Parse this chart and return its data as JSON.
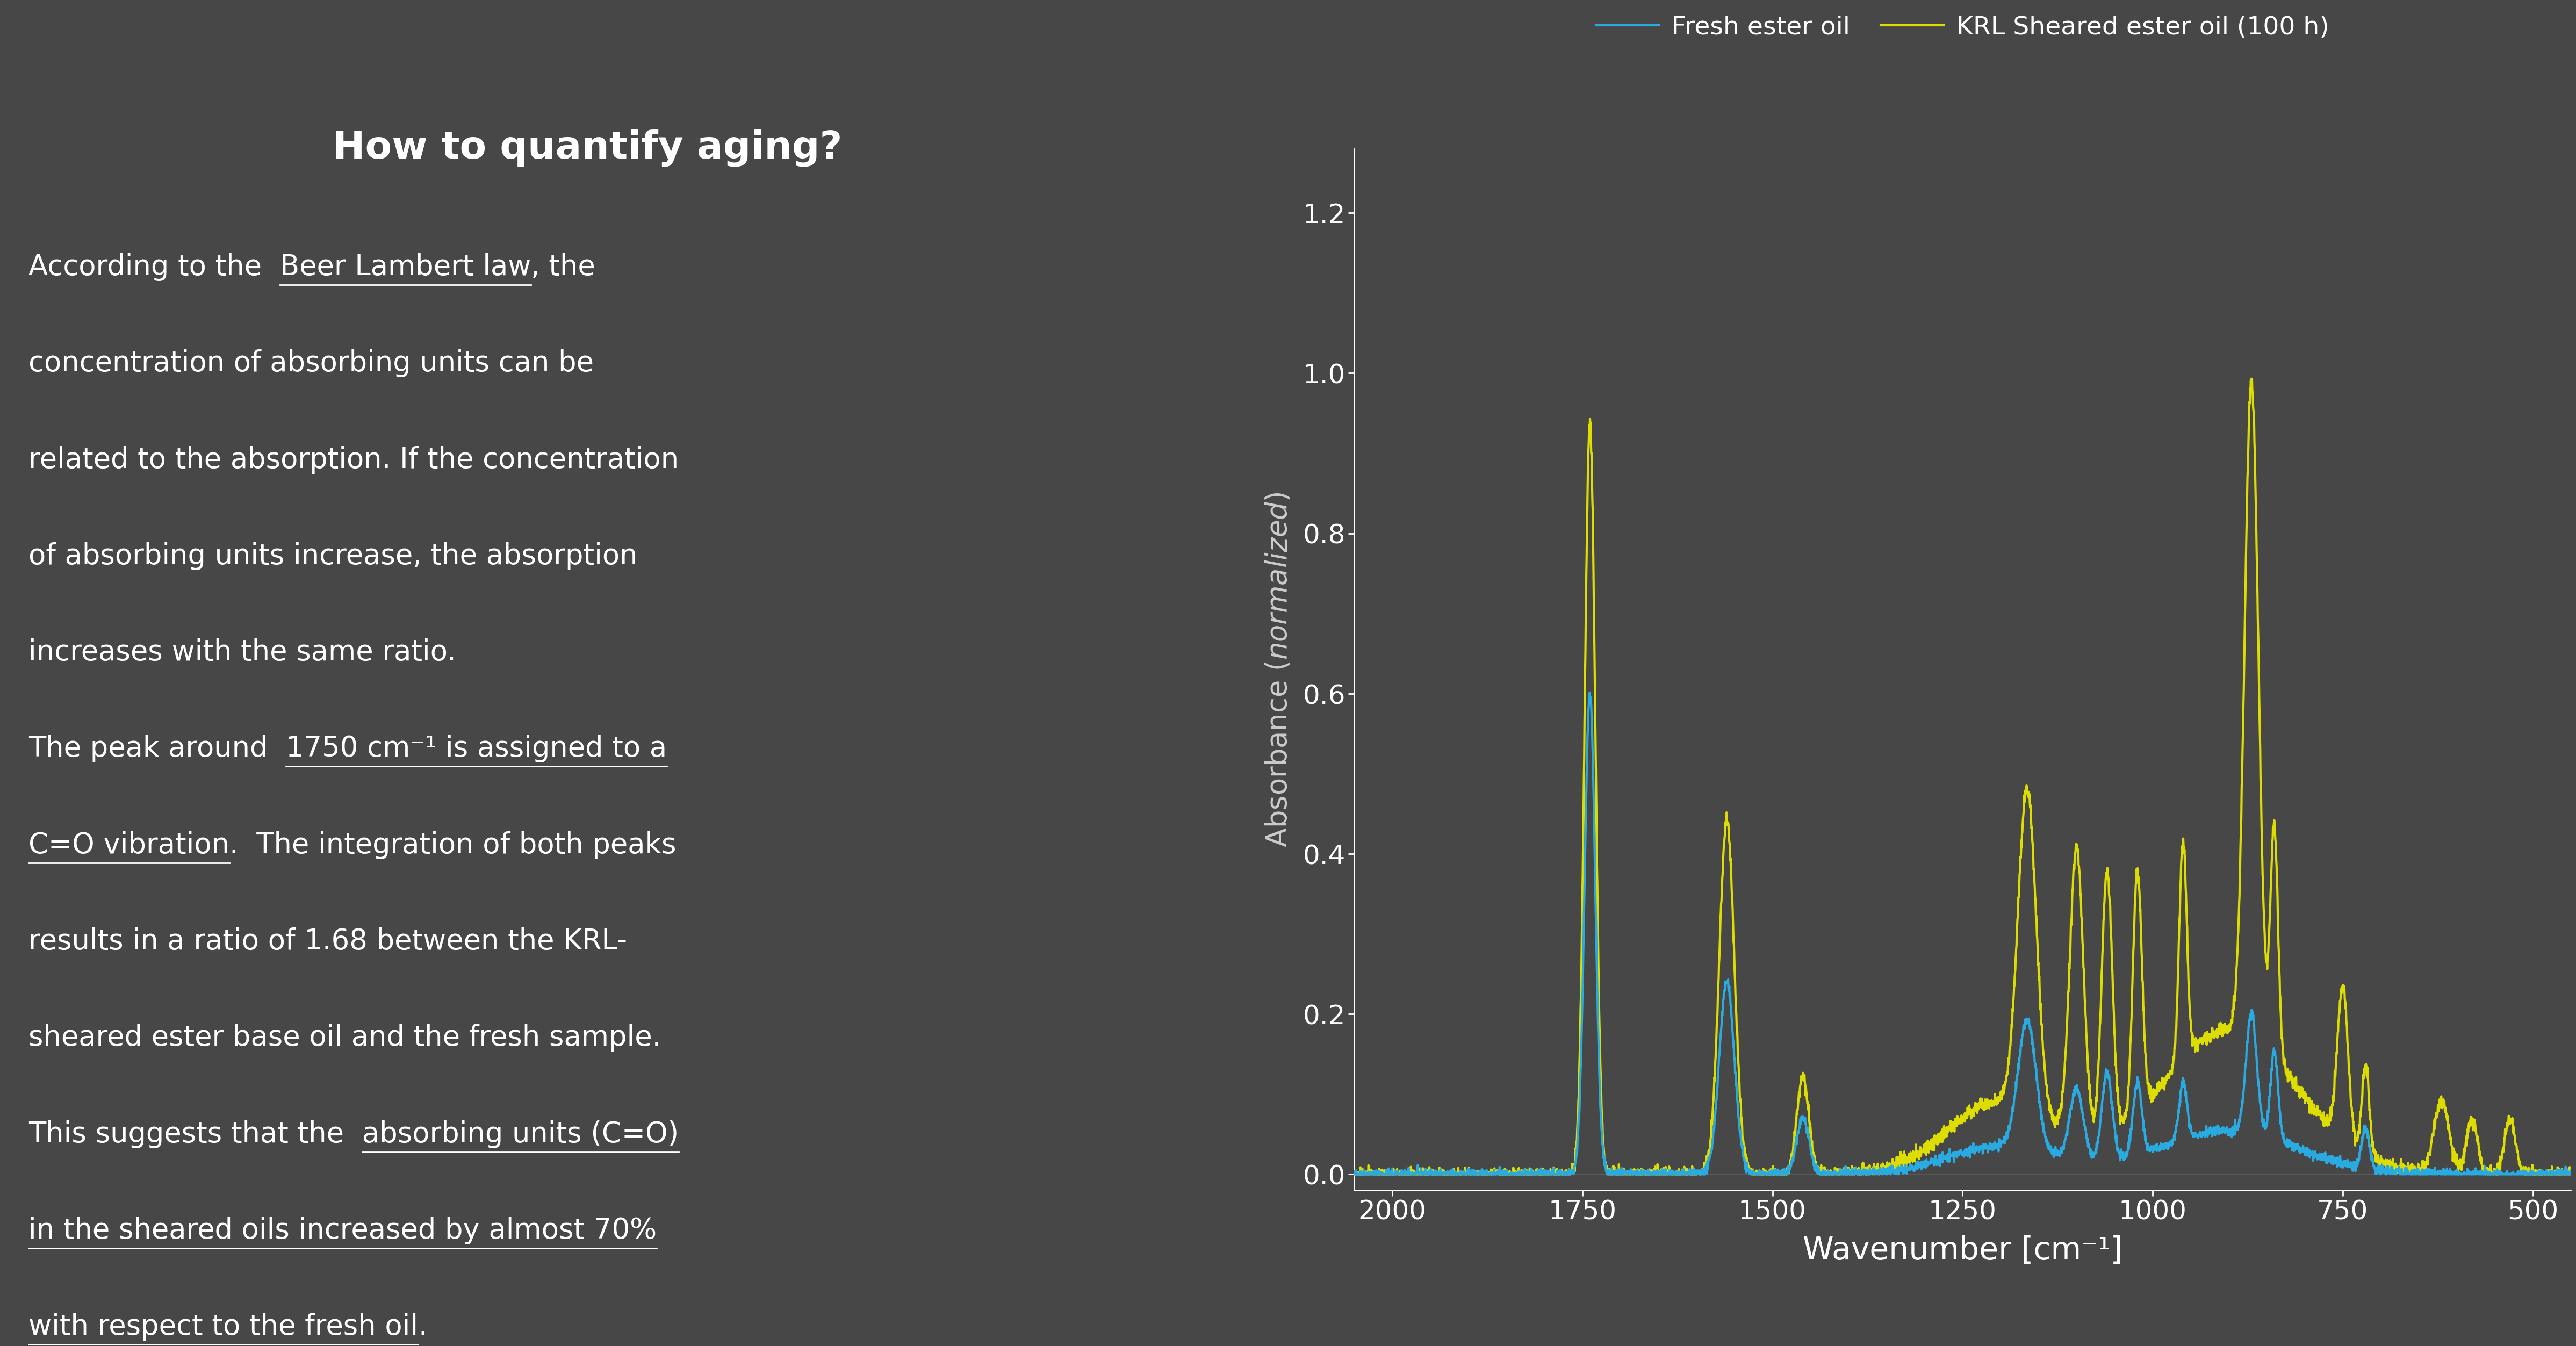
{
  "background_color": "#474747",
  "title": "How to quantify aging?",
  "title_color": "#ffffff",
  "title_fontsize": 52,
  "body_fontsize": 38,
  "plot_bg_color": "#474747",
  "axes_color": "#ffffff",
  "legend_labels": [
    "Fresh ester oil",
    "KRL Sheared ester oil (100 h)"
  ],
  "fresh_color": "#29ABE2",
  "sheared_color": "#DDDD00",
  "xlabel": "Wavenumber [cm⁻¹]",
  "xlim": [
    2050,
    450
  ],
  "ylim": [
    -0.02,
    1.28
  ],
  "yticks": [
    0.0,
    0.2,
    0.4,
    0.6,
    0.8,
    1.0,
    1.2
  ],
  "xticks": [
    2000,
    1750,
    1500,
    1250,
    1000,
    750,
    500
  ],
  "line_width": 3.0
}
